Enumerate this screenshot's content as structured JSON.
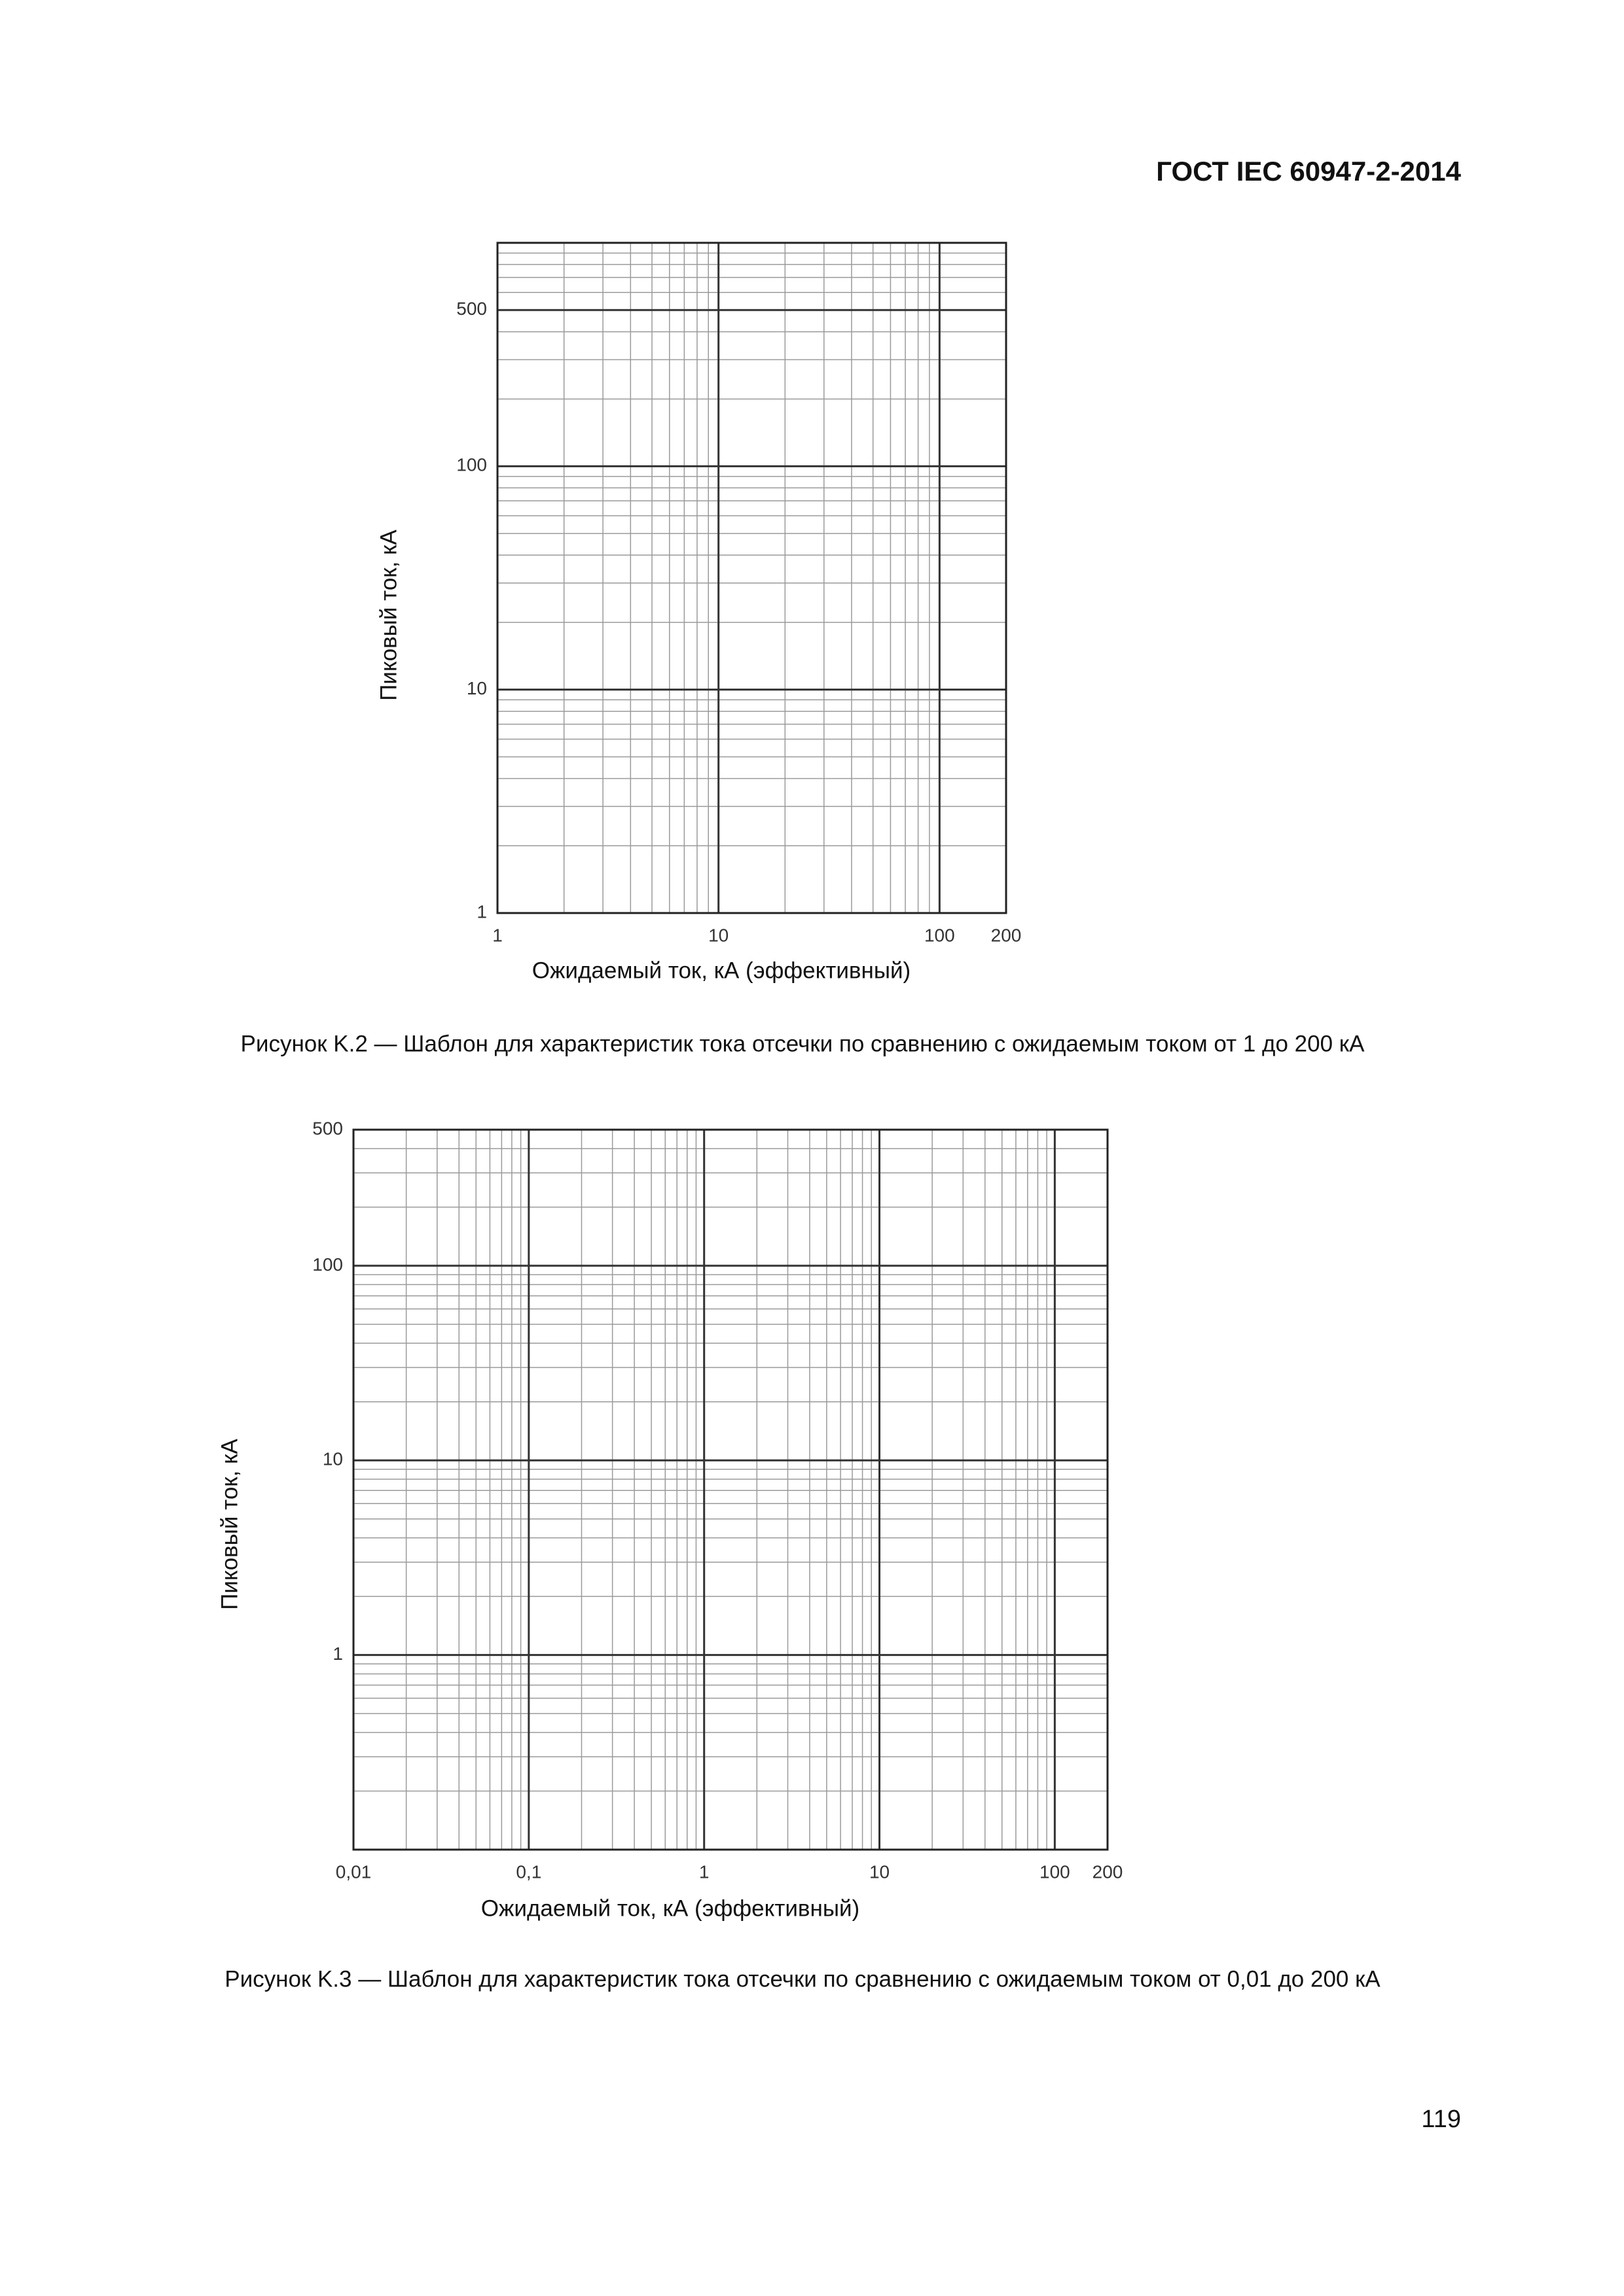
{
  "header": "ГОСТ IEC 60947-2-2014",
  "chart_data": [
    {
      "type": "grid",
      "xlabel": "Ожидаемый ток, кА (эффективный)",
      "ylabel": "Пиковый ток, кА",
      "caption": "Рисунок K.2 — Шаблон для характеристик тока отсечки по сравнению с ожидаемым током от 1 до 200 кА",
      "xscale": "log",
      "yscale": "log",
      "grid": true,
      "xlim": [
        1,
        200
      ],
      "ylim": [
        1,
        1000
      ],
      "xticks": [
        1,
        10,
        100,
        200
      ],
      "yticks": [
        1,
        10,
        100,
        500
      ],
      "x_minor_grid": [
        2,
        3,
        4,
        5,
        6,
        7,
        8,
        9,
        20,
        30,
        40,
        50,
        60,
        70,
        80,
        90
      ],
      "y_minor_grid": [
        2,
        3,
        4,
        5,
        6,
        7,
        8,
        9,
        20,
        30,
        40,
        50,
        60,
        70,
        80,
        90,
        200,
        300,
        400,
        600,
        700,
        800,
        900
      ]
    },
    {
      "type": "grid",
      "xlabel": "Ожидаемый ток, кА (эффективный)",
      "ylabel": "Пиковый ток, кА",
      "caption": "Рисунок K.3 — Шаблон для характеристик тока отсечки по сравнению с ожидаемым током от 0,01 до 200 кА",
      "xscale": "log",
      "yscale": "log",
      "grid": true,
      "xlim": [
        0.01,
        200
      ],
      "ylim": [
        0.1,
        500
      ],
      "xticks": [
        {
          "value": 0.01,
          "label": "0,01"
        },
        {
          "value": 0.1,
          "label": "0,1"
        },
        1,
        10,
        100,
        200
      ],
      "yticks": [
        1,
        10,
        100,
        500
      ],
      "x_minor_grid": [
        0.02,
        0.03,
        0.04,
        0.05,
        0.06,
        0.07,
        0.08,
        0.09,
        0.2,
        0.3,
        0.4,
        0.5,
        0.6,
        0.7,
        0.8,
        0.9,
        2,
        3,
        4,
        5,
        6,
        7,
        8,
        9,
        20,
        30,
        40,
        50,
        60,
        70,
        80,
        90
      ],
      "y_minor_grid": [
        0.2,
        0.3,
        0.4,
        0.5,
        0.6,
        0.7,
        0.8,
        0.9,
        2,
        3,
        4,
        5,
        6,
        7,
        8,
        9,
        20,
        30,
        40,
        50,
        60,
        70,
        80,
        90,
        200,
        300,
        400
      ]
    }
  ],
  "page_number": "119"
}
